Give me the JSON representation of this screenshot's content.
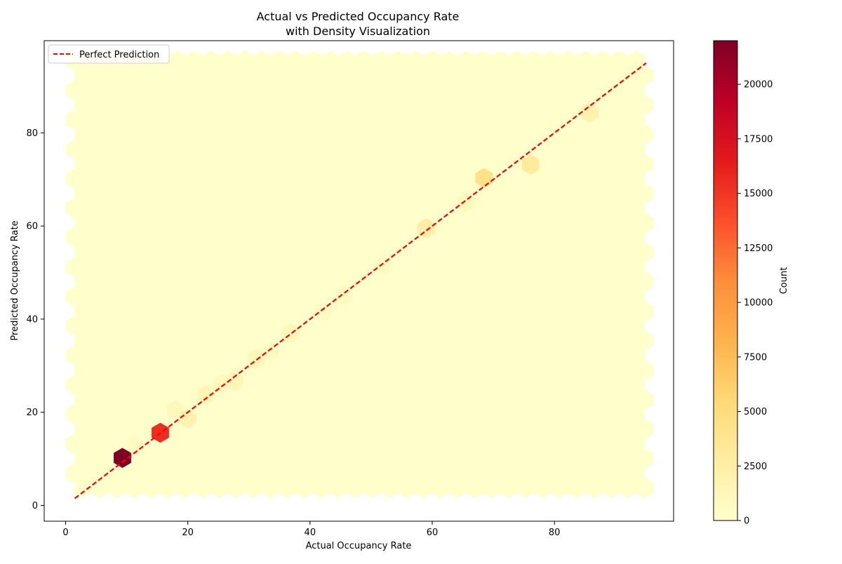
{
  "chart_data": {
    "type": "hexbin",
    "title": "Actual vs Predicted Occupancy Rate\nwith Density Visualization",
    "xlabel": "Actual Occupancy Rate",
    "ylabel": "Predicted Occupancy Rate",
    "xlim": [
      -3.5,
      99.5
    ],
    "ylim": [
      -3.4,
      99.8
    ],
    "xticks": [
      0,
      20,
      40,
      60,
      80
    ],
    "yticks": [
      0,
      20,
      40,
      60,
      80
    ],
    "grid": false,
    "legend": {
      "placement": "upper-left",
      "entries": [
        {
          "label": "Perfect Prediction",
          "color": "#ff0000",
          "style": "dashed"
        }
      ]
    },
    "reference_line": {
      "name": "Perfect Prediction",
      "x": [
        1.5,
        95
      ],
      "y": [
        1.5,
        95
      ],
      "color": "#ff0000"
    },
    "background_extent": {
      "x": [
        1.5,
        95
      ],
      "y": [
        1.0,
        95.5
      ]
    },
    "background_count": 0,
    "bins": [
      {
        "x": 9.3,
        "y": 10.2,
        "count": 22000
      },
      {
        "x": 15.5,
        "y": 15.6,
        "count": 15500
      },
      {
        "x": 68.5,
        "y": 70.3,
        "count": 4200
      },
      {
        "x": 76.1,
        "y": 73.2,
        "count": 3000
      },
      {
        "x": 59.0,
        "y": 59.5,
        "count": 2400
      },
      {
        "x": 85.8,
        "y": 84.3,
        "count": 2000
      },
      {
        "x": 20.0,
        "y": 18.7,
        "count": 1800
      },
      {
        "x": 23.0,
        "y": 23.8,
        "count": 1500
      },
      {
        "x": 27.6,
        "y": 26.8,
        "count": 1300
      },
      {
        "x": 31.2,
        "y": 31.5,
        "count": 1200
      },
      {
        "x": 36.8,
        "y": 37.0,
        "count": 1100
      },
      {
        "x": 18.0,
        "y": 20.5,
        "count": 1000
      },
      {
        "x": 65.5,
        "y": 65.0,
        "count": 900
      },
      {
        "x": 11.5,
        "y": 12.8,
        "count": 800
      },
      {
        "x": 45.5,
        "y": 45.0,
        "count": 700
      },
      {
        "x": 52.0,
        "y": 51.5,
        "count": 600
      },
      {
        "x": 42.0,
        "y": 41.5,
        "count": 600
      },
      {
        "x": 33.5,
        "y": 33.0,
        "count": 700
      },
      {
        "x": 25.5,
        "y": 26.0,
        "count": 900
      }
    ],
    "colorbar": {
      "label": "Count",
      "range": [
        0,
        22000
      ],
      "ticks": [
        0,
        2500,
        5000,
        7500,
        10000,
        12500,
        15000,
        17500,
        20000
      ],
      "colormap": [
        "#ffffcc",
        "#ffeda0",
        "#fed976",
        "#feb24c",
        "#fd8d3c",
        "#fc4e2a",
        "#e31a1c",
        "#bd0026",
        "#800026"
      ]
    }
  }
}
